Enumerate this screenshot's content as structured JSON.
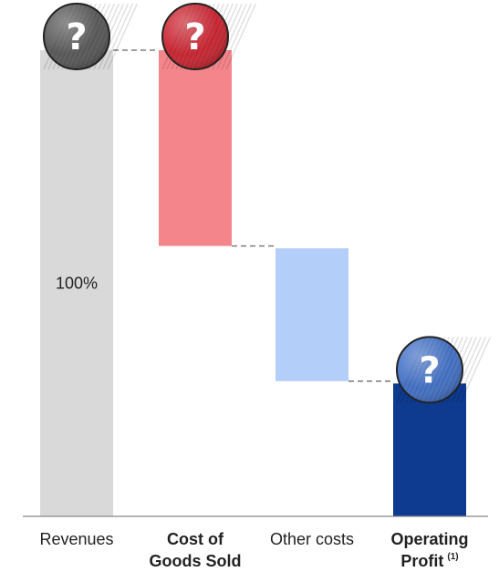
{
  "chart_data": {
    "type": "bar",
    "subtype": "waterfall",
    "categories": [
      "Revenues",
      "Cost of Goods Sold",
      "Other costs",
      "Operating Profit"
    ],
    "category_lines": [
      [
        "Revenues"
      ],
      [
        "Cost of",
        "Goods Sold"
      ],
      [
        "Other costs"
      ],
      [
        "Operating",
        "Profit"
      ]
    ],
    "category_bold": [
      false,
      true,
      false,
      true
    ],
    "footnote_marks": [
      "",
      "",
      "",
      "(1)"
    ],
    "bars": [
      {
        "category": "Revenues",
        "start": 0,
        "end": 100,
        "color": "#d9d9d9",
        "label": "100%",
        "marker": "?",
        "marker_color": "#555555"
      },
      {
        "category": "Cost of Goods Sold",
        "start": 58,
        "end": 100,
        "color": "#f4858a",
        "label": "",
        "marker": "?",
        "marker_color": "#c9202c"
      },
      {
        "category": "Other costs",
        "start": 29,
        "end": 57.5,
        "color": "#b3cef8",
        "label": "",
        "marker": "",
        "marker_color": ""
      },
      {
        "category": "Operating Profit",
        "start": 0,
        "end": 28.5,
        "color": "#0e3a8f",
        "label": "",
        "marker": "?",
        "marker_color": "#3f6ec4"
      }
    ],
    "ylim": [
      0,
      100
    ],
    "title": "",
    "xlabel": "",
    "ylabel": "",
    "grid": false,
    "connector_color": "#808080"
  }
}
